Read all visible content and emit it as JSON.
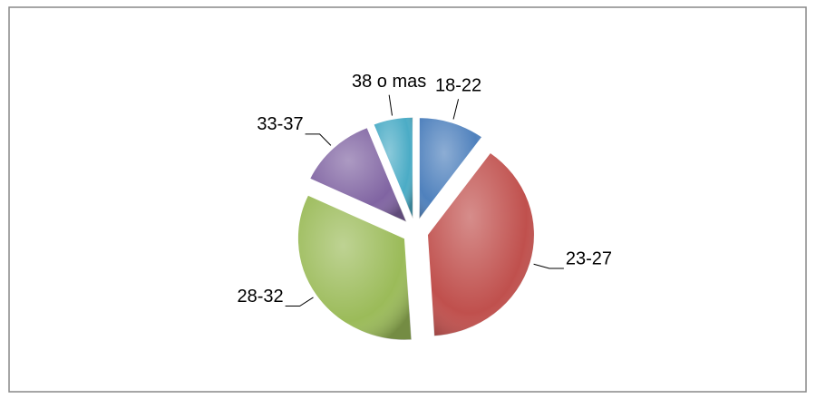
{
  "chart_data": {
    "type": "pie",
    "categories": [
      "18-22",
      "23-27",
      "28-32",
      "33-37",
      "38 o mas"
    ],
    "values": [
      10,
      39,
      33,
      12,
      6
    ],
    "colors": [
      "#4f81bd",
      "#c0504d",
      "#9bbb59",
      "#8064a2",
      "#4bacc6"
    ],
    "exploded": true
  }
}
